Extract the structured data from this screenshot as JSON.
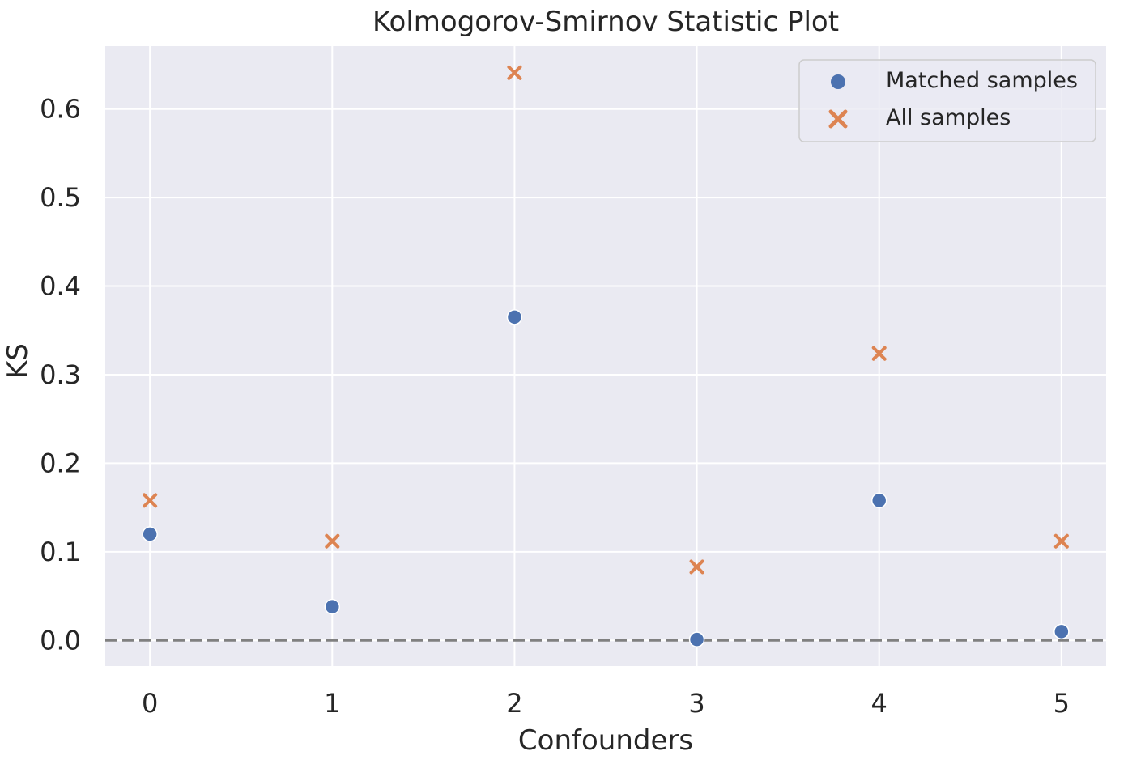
{
  "chart_data": {
    "type": "scatter",
    "title": "Kolmogorov-Smirnov Statistic Plot",
    "xlabel": "Confounders",
    "ylabel": "KS",
    "x": [
      0,
      1,
      2,
      3,
      4,
      5
    ],
    "x_ticks": [
      "0",
      "1",
      "2",
      "3",
      "4",
      "5"
    ],
    "y_ticks": [
      "0.0",
      "0.1",
      "0.2",
      "0.3",
      "0.4",
      "0.5",
      "0.6"
    ],
    "xlim": [
      -0.245,
      5.245
    ],
    "ylim": [
      -0.029,
      0.671
    ],
    "grid": true,
    "reference_line": {
      "y": 0.0,
      "style": "dashed",
      "color": "#808080"
    },
    "legend_position": "top-right",
    "series": [
      {
        "name": "Matched samples",
        "marker": "circle",
        "color": "#4c72b0",
        "values": [
          0.12,
          0.038,
          0.365,
          0.001,
          0.158,
          0.01
        ]
      },
      {
        "name": "All samples",
        "marker": "x",
        "color": "#dd8452",
        "values": [
          0.158,
          0.112,
          0.641,
          0.083,
          0.324,
          0.112
        ]
      }
    ]
  }
}
